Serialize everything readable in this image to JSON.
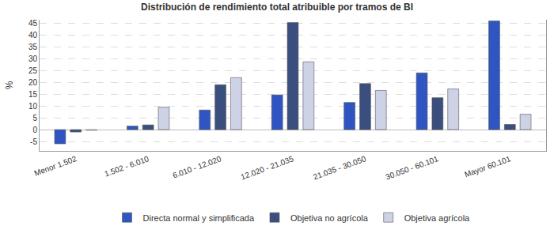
{
  "chart_data": {
    "type": "bar",
    "title": "Distribución de rendimiento total atribuible por tramos de BI",
    "y_label": "%",
    "categories": [
      "Menor 1.502",
      "1.502 - 6.010",
      "6.010 - 12.020",
      "12.020 - 21.035",
      "21.035 - 30.050",
      "30.050 - 60.101",
      "Mayor 60.101"
    ],
    "series": [
      {
        "name": "Directa normal y simplificada",
        "color": "#2e55c2",
        "values": [
          -6,
          1.5,
          8.3,
          14.7,
          11.5,
          24,
          46
        ]
      },
      {
        "name": "Objetiva no agrícola",
        "color": "#3b4f7e",
        "values": [
          -1,
          2,
          19,
          45.3,
          19.5,
          13.5,
          2.2
        ]
      },
      {
        "name": "Objetiva agrícola",
        "color": "#cdd2e6",
        "values": [
          -0.3,
          9.5,
          22,
          28.7,
          16.6,
          17.2,
          6.5
        ]
      }
    ],
    "ylim": [
      -9,
      46.5
    ],
    "yticks": [
      -5,
      0,
      5,
      10,
      15,
      20,
      25,
      30,
      35,
      40,
      45
    ],
    "grid": true,
    "legend": "bottom"
  }
}
